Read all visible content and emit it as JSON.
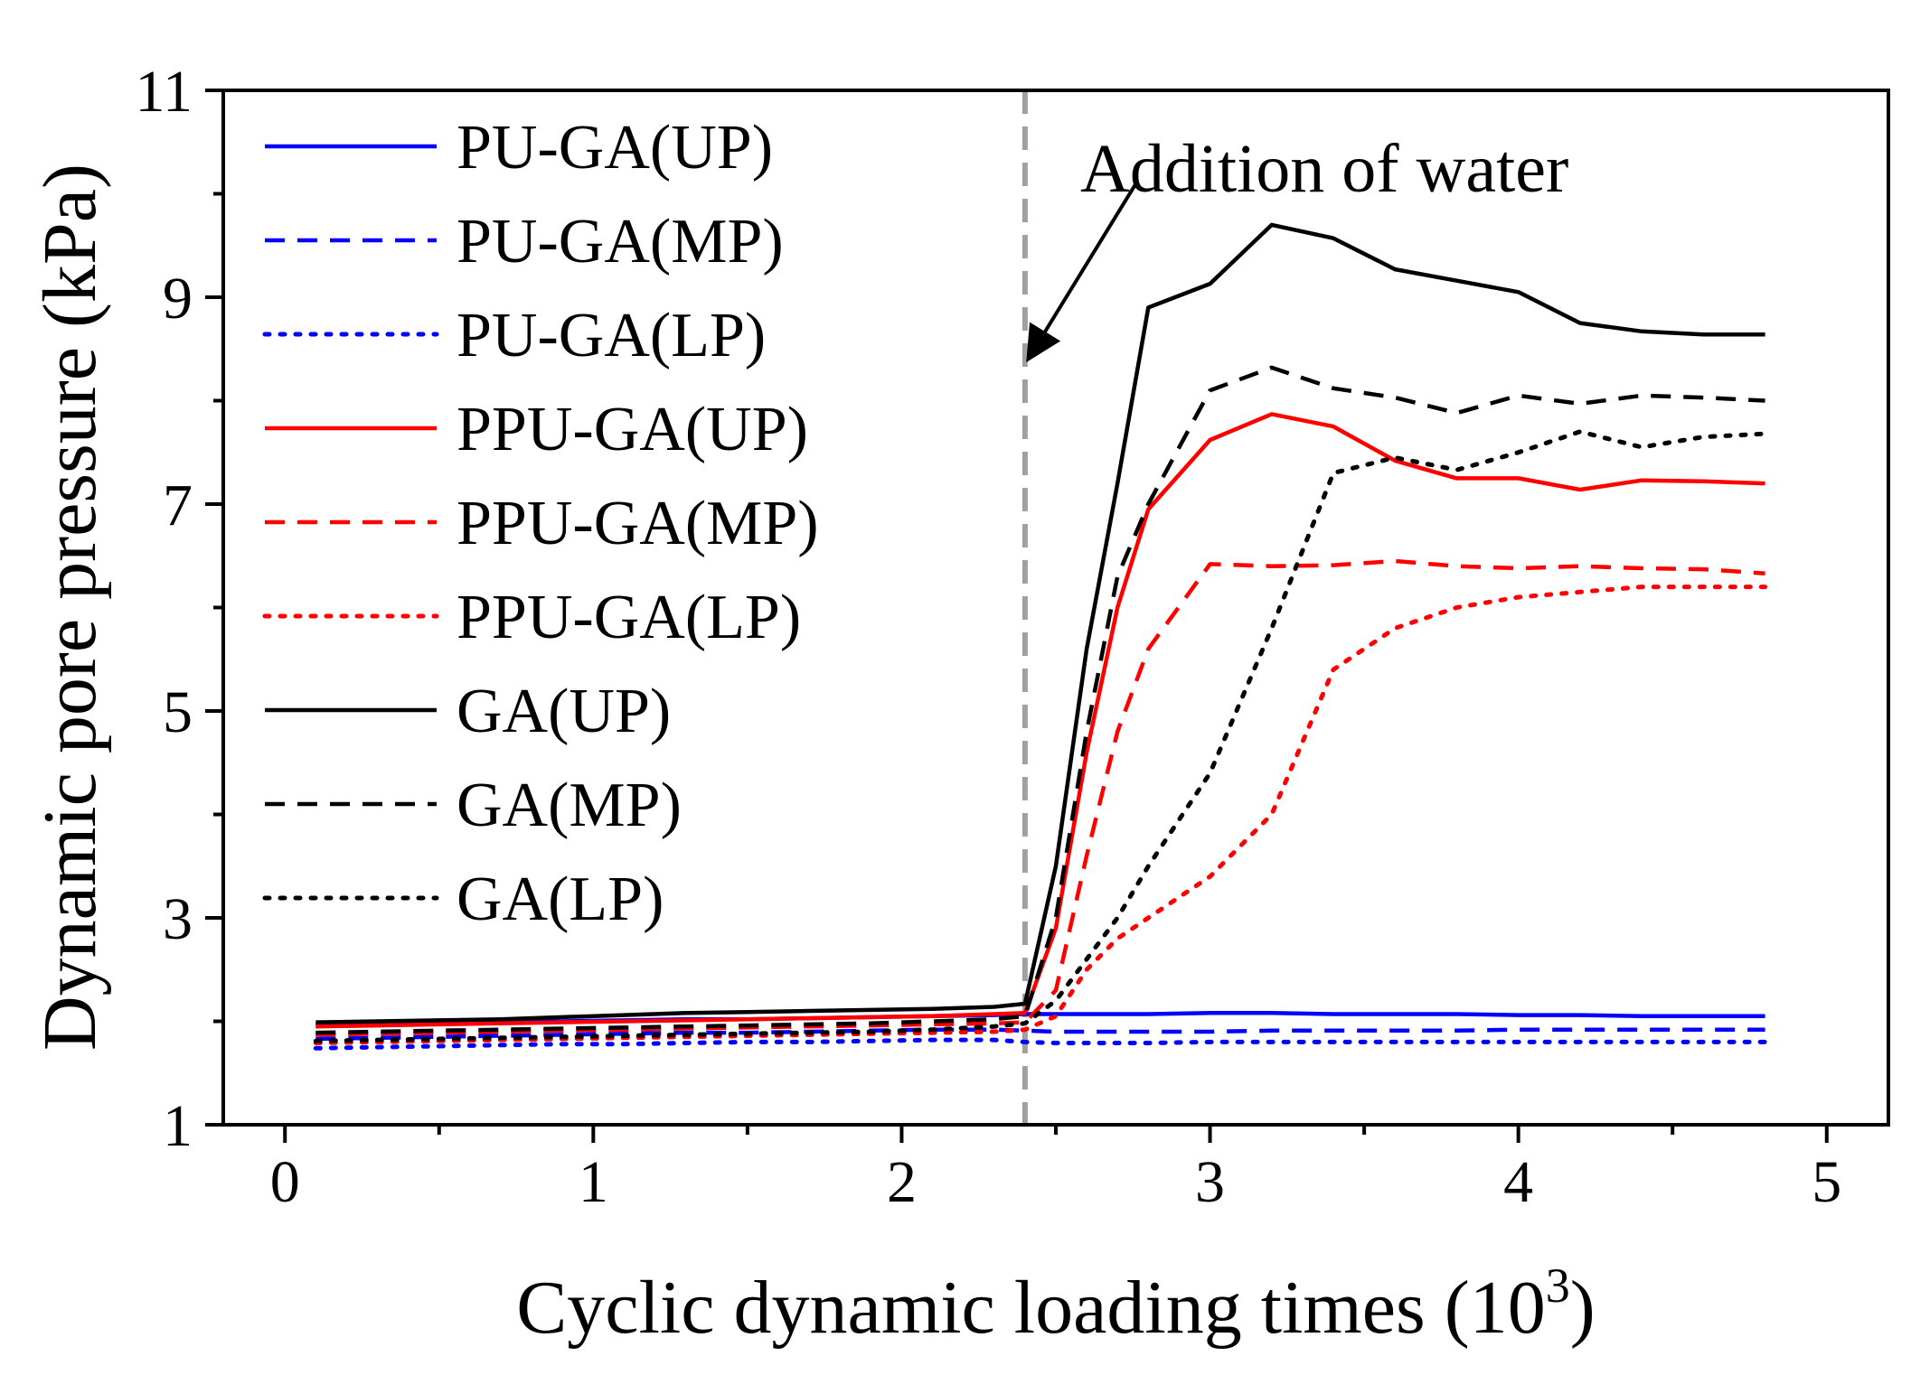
{
  "chart_data": {
    "type": "line",
    "xlabel": "Cyclic dynamic loading times (10",
    "xlabel_sup": "3",
    "xlabel_close": ")",
    "ylabel": "Dynamic pore pressure (kPa)",
    "xlim": [
      -0.2,
      5.2
    ],
    "ylim": [
      1,
      11
    ],
    "x_major_ticks": [
      0,
      1,
      2,
      3,
      4,
      5
    ],
    "x_minor_ticks": [
      0.5,
      1.5,
      2.5,
      3.5,
      4.5
    ],
    "y_major_ticks": [
      1,
      3,
      5,
      7,
      9,
      11
    ],
    "y_minor_ticks": [
      2,
      4,
      6,
      8,
      10
    ],
    "legend_position": "top-left",
    "annotation": {
      "text": "Addition of water",
      "vline_x": 2.4,
      "vline_color": "#a0a0a0",
      "arrow_from": [
        2.76,
        10.1
      ],
      "arrow_to": [
        2.41,
        8.4
      ]
    },
    "x": [
      0.1,
      0.3,
      0.5,
      0.7,
      0.9,
      1.1,
      1.3,
      1.5,
      1.7,
      1.9,
      2.1,
      2.3,
      2.4,
      2.5,
      2.6,
      2.7,
      2.8,
      3.0,
      3.2,
      3.4,
      3.6,
      3.8,
      4.0,
      4.2,
      4.4,
      4.6,
      4.8
    ],
    "series": [
      {
        "name": "PU-GA(UP)",
        "color": "#0000ff",
        "dash": "solid",
        "values": [
          1.96,
          1.98,
          1.98,
          1.99,
          2.0,
          2.01,
          2.02,
          2.02,
          2.03,
          2.04,
          2.05,
          2.06,
          2.07,
          2.07,
          2.07,
          2.07,
          2.07,
          2.08,
          2.08,
          2.07,
          2.07,
          2.07,
          2.06,
          2.06,
          2.05,
          2.05,
          2.05
        ]
      },
      {
        "name": "PU-GA(MP)",
        "color": "#0000ff",
        "dash": "dashed",
        "values": [
          1.83,
          1.84,
          1.85,
          1.86,
          1.87,
          1.88,
          1.89,
          1.89,
          1.9,
          1.91,
          1.92,
          1.92,
          1.91,
          1.9,
          1.9,
          1.9,
          1.9,
          1.9,
          1.91,
          1.91,
          1.91,
          1.91,
          1.92,
          1.92,
          1.92,
          1.92,
          1.92
        ]
      },
      {
        "name": "PU-GA(LP)",
        "color": "#0000ff",
        "dash": "dotted",
        "values": [
          1.74,
          1.75,
          1.76,
          1.77,
          1.78,
          1.78,
          1.79,
          1.8,
          1.8,
          1.81,
          1.82,
          1.82,
          1.8,
          1.79,
          1.79,
          1.79,
          1.79,
          1.8,
          1.8,
          1.8,
          1.8,
          1.8,
          1.8,
          1.8,
          1.8,
          1.8,
          1.8
        ]
      },
      {
        "name": "PPU-GA(UP)",
        "color": "#ff0000",
        "dash": "solid",
        "values": [
          1.95,
          1.96,
          1.97,
          1.98,
          1.99,
          2.0,
          2.01,
          2.02,
          2.03,
          2.04,
          2.05,
          2.07,
          2.08,
          2.9,
          4.6,
          6.0,
          6.95,
          7.62,
          7.87,
          7.75,
          7.42,
          7.25,
          7.25,
          7.14,
          7.23,
          7.22,
          7.2
        ]
      },
      {
        "name": "PPU-GA(MP)",
        "color": "#ff0000",
        "dash": "dashed",
        "values": [
          1.87,
          1.88,
          1.89,
          1.9,
          1.91,
          1.92,
          1.93,
          1.94,
          1.95,
          1.96,
          1.97,
          1.98,
          1.99,
          2.3,
          3.6,
          4.8,
          5.6,
          6.42,
          6.4,
          6.41,
          6.45,
          6.4,
          6.38,
          6.4,
          6.38,
          6.37,
          6.33
        ]
      },
      {
        "name": "PPU-GA(LP)",
        "color": "#ff0000",
        "dash": "dotted",
        "values": [
          1.79,
          1.8,
          1.81,
          1.82,
          1.83,
          1.84,
          1.85,
          1.86,
          1.87,
          1.88,
          1.89,
          1.9,
          1.92,
          2.05,
          2.5,
          2.8,
          3.0,
          3.4,
          4.0,
          5.4,
          5.8,
          6.0,
          6.1,
          6.15,
          6.2,
          6.2,
          6.2
        ]
      },
      {
        "name": "GA(UP)",
        "color": "#000000",
        "dash": "solid",
        "values": [
          1.99,
          2.0,
          2.01,
          2.02,
          2.04,
          2.06,
          2.08,
          2.09,
          2.1,
          2.11,
          2.12,
          2.14,
          2.17,
          3.5,
          5.6,
          7.2,
          8.9,
          9.13,
          9.7,
          9.57,
          9.27,
          9.16,
          9.05,
          8.75,
          8.67,
          8.64,
          8.64
        ]
      },
      {
        "name": "GA(MP)",
        "color": "#000000",
        "dash": "dashed",
        "values": [
          1.89,
          1.9,
          1.91,
          1.92,
          1.93,
          1.94,
          1.95,
          1.96,
          1.97,
          1.98,
          2.0,
          2.02,
          2.05,
          3.0,
          4.8,
          6.3,
          7.0,
          8.1,
          8.32,
          8.12,
          8.03,
          7.88,
          8.05,
          7.97,
          8.05,
          8.03,
          8.0
        ]
      },
      {
        "name": "GA(LP)",
        "color": "#000000",
        "dash": "dotted",
        "values": [
          1.81,
          1.82,
          1.83,
          1.84,
          1.85,
          1.86,
          1.87,
          1.88,
          1.89,
          1.9,
          1.92,
          1.95,
          1.98,
          2.2,
          2.6,
          3.0,
          3.5,
          4.4,
          5.8,
          7.3,
          7.45,
          7.33,
          7.5,
          7.7,
          7.55,
          7.65,
          7.68
        ]
      }
    ]
  }
}
